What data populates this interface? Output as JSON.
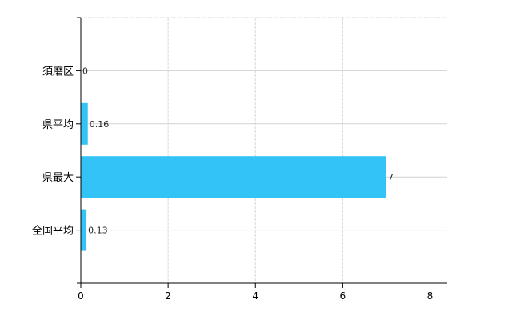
{
  "chart_data": {
    "type": "bar",
    "orientation": "horizontal",
    "categories": [
      "須磨区",
      "県平均",
      "県最大",
      "全国平均"
    ],
    "values": [
      0,
      0.16,
      7,
      0.13
    ],
    "data_labels": [
      "0",
      "0.16",
      "7",
      "0.13"
    ],
    "xlim": [
      0,
      8.4
    ],
    "xticks": [
      0,
      2,
      4,
      6,
      8
    ],
    "grid": true,
    "bar_color": "#33c3f7",
    "title": "",
    "xlabel": "",
    "ylabel": ""
  }
}
